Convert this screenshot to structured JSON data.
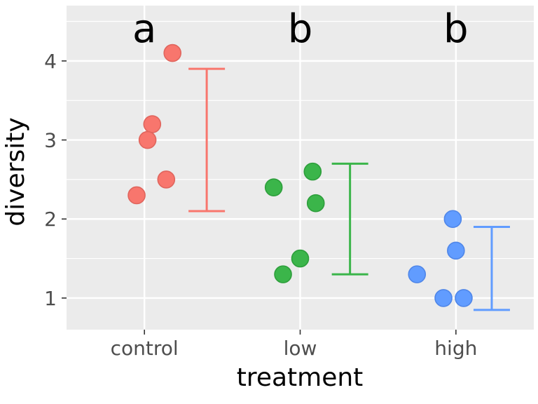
{
  "figure": {
    "background": "#ffffff",
    "panel_background": "#ebebeb",
    "grid_color": "#ffffff",
    "tick_color": "#333333",
    "tick_label_color": "#4d4d4d",
    "axis_title_color": "#000000",
    "sig_letter_color": "#000000"
  },
  "chart_data": {
    "type": "scatter",
    "subtype": "jittered-stripchart-with-errorbars",
    "title": "",
    "xlabel": "treatment",
    "ylabel": "diversity",
    "categories": [
      "control",
      "low",
      "high"
    ],
    "ylim": [
      0.6,
      4.7
    ],
    "yticks": [
      1,
      2,
      3,
      4
    ],
    "grid": "on",
    "legend": "none",
    "sig_labels": [
      "a",
      "b",
      "b"
    ],
    "series": [
      {
        "name": "control",
        "fill": "#f8766d",
        "stroke": "#e0655d",
        "points": [
          {
            "dx": 0.18,
            "y": 4.1
          },
          {
            "dx": 0.05,
            "y": 3.2
          },
          {
            "dx": 0.02,
            "y": 3.0
          },
          {
            "dx": 0.14,
            "y": 2.5
          },
          {
            "dx": -0.05,
            "y": 2.3
          }
        ],
        "errorbar": {
          "dx": 0.4,
          "ymin": 2.1,
          "ymax": 3.9
        }
      },
      {
        "name": "low",
        "fill": "#3bb54a",
        "stroke": "#2d9e3b",
        "points": [
          {
            "dx": -0.17,
            "y": 2.4
          },
          {
            "dx": 0.08,
            "y": 2.6
          },
          {
            "dx": 0.1,
            "y": 2.2
          },
          {
            "dx": 0.0,
            "y": 1.5
          },
          {
            "dx": -0.11,
            "y": 1.3
          }
        ],
        "errorbar": {
          "dx": 0.32,
          "ymin": 1.3,
          "ymax": 2.7
        }
      },
      {
        "name": "high",
        "fill": "#619cff",
        "stroke": "#4f86e8",
        "points": [
          {
            "dx": -0.25,
            "y": 1.3
          },
          {
            "dx": -0.02,
            "y": 2.0
          },
          {
            "dx": 0.0,
            "y": 1.6
          },
          {
            "dx": -0.08,
            "y": 1.0
          },
          {
            "dx": 0.05,
            "y": 1.0
          }
        ],
        "errorbar": {
          "dx": 0.23,
          "ymin": 0.85,
          "ymax": 1.9
        }
      }
    ]
  }
}
